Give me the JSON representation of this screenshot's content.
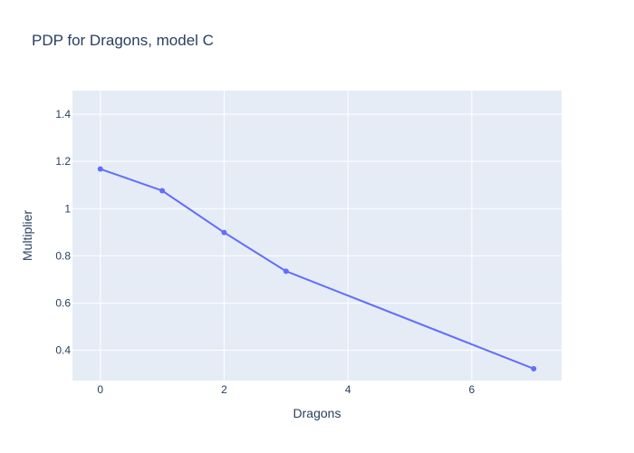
{
  "chart_data": {
    "type": "line",
    "title": "PDP for Dragons, model C",
    "xlabel": "Dragons",
    "ylabel": "Multiplier",
    "xlim": [
      -0.45,
      7.45
    ],
    "ylim": [
      0.272,
      1.5
    ],
    "x_ticks": [
      0,
      2,
      4,
      6
    ],
    "y_ticks": [
      0.4,
      0.6,
      0.8,
      1,
      1.2,
      1.4
    ],
    "grid": true,
    "legend": "none",
    "series": [
      {
        "x": [
          0,
          1,
          2,
          3,
          7
        ],
        "y": [
          1.168,
          1.076,
          0.899,
          0.735,
          0.322
        ],
        "color": "#636efa",
        "mode": "lines+markers"
      }
    ],
    "colors": {
      "plot_bg": "#e5ecf6",
      "grid": "#ffffff",
      "text": "#2a3f5f",
      "line": "#636efa"
    }
  }
}
